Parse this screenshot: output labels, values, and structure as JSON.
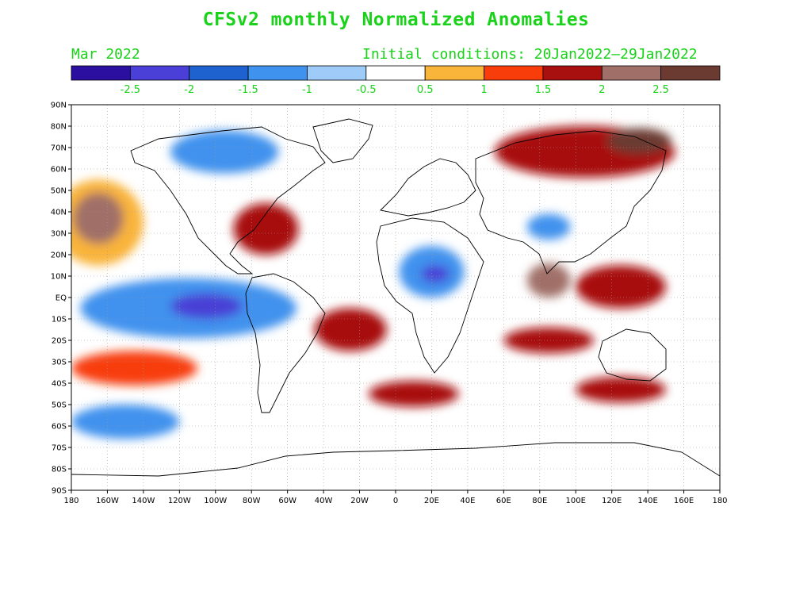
{
  "title": "CFSv2 monthly Normalized Anomalies",
  "month_label": "Mar 2022",
  "initial_conditions": "Initial conditions: 20Jan2022–29Jan2022",
  "colorbar": {
    "colors": [
      "#2a0fa0",
      "#4a3fd6",
      "#1e62d0",
      "#3f92ee",
      "#9ecbf7",
      "#ffffff",
      "#f9b43a",
      "#f83d0b",
      "#a80f0f",
      "#a07068",
      "#6b3a31"
    ],
    "labels": [
      "-2.5",
      "-2",
      "-1.5",
      "-1",
      "-0.5",
      "0.5",
      "1",
      "1.5",
      "2",
      "2.5"
    ]
  },
  "map": {
    "lat_labels": [
      "90N",
      "80N",
      "70N",
      "60N",
      "50N",
      "40N",
      "30N",
      "20N",
      "10N",
      "EQ",
      "10S",
      "20S",
      "30S",
      "40S",
      "50S",
      "60S",
      "70S",
      "80S",
      "90S"
    ],
    "lon_labels": [
      "180",
      "160W",
      "140W",
      "120W",
      "100W",
      "80W",
      "60W",
      "40W",
      "20W",
      "0",
      "20E",
      "40E",
      "60E",
      "80E",
      "100E",
      "120E",
      "140E",
      "160E",
      "180"
    ],
    "regions": [
      {
        "name": "north-pacific-warm",
        "level": 6,
        "lon": -165,
        "lat": 35,
        "rx": 25,
        "ry": 20
      },
      {
        "name": "north-pacific-core",
        "level": 9,
        "lon": -165,
        "lat": 37,
        "rx": 14,
        "ry": 12
      },
      {
        "name": "tropical-pacific-cold",
        "level": 3,
        "lon": -115,
        "lat": -5,
        "rx": 60,
        "ry": 14
      },
      {
        "name": "tropical-pacific-cold-core",
        "level": 1,
        "lon": -105,
        "lat": -4,
        "rx": 20,
        "ry": 6
      },
      {
        "name": "south-pacific-warm-band",
        "level": 7,
        "lon": -145,
        "lat": -33,
        "rx": 35,
        "ry": 8
      },
      {
        "name": "eastern-us-warm",
        "level": 8,
        "lon": -72,
        "lat": 32,
        "rx": 18,
        "ry": 12
      },
      {
        "name": "canada-cold",
        "level": 3,
        "lon": -95,
        "lat": 68,
        "rx": 30,
        "ry": 10
      },
      {
        "name": "africa-cold",
        "level": 3,
        "lon": 20,
        "lat": 12,
        "rx": 18,
        "ry": 12
      },
      {
        "name": "africa-cold-core",
        "level": 1,
        "lon": 22,
        "lat": 11,
        "rx": 8,
        "ry": 4
      },
      {
        "name": "siberia-warm",
        "level": 8,
        "lon": 105,
        "lat": 68,
        "rx": 50,
        "ry": 12
      },
      {
        "name": "siberia-core",
        "level": 10,
        "lon": 135,
        "lat": 73,
        "rx": 18,
        "ry": 6
      },
      {
        "name": "bay-of-bengal-warm",
        "level": 9,
        "lon": 85,
        "lat": 8,
        "rx": 12,
        "ry": 8
      },
      {
        "name": "indonesia-warm",
        "level": 8,
        "lon": 125,
        "lat": 5,
        "rx": 25,
        "ry": 10
      },
      {
        "name": "south-indian-ocean-warm",
        "level": 8,
        "lon": 85,
        "lat": -20,
        "rx": 25,
        "ry": 6
      },
      {
        "name": "southern-ocean-warm",
        "level": 8,
        "lon": 10,
        "lat": -45,
        "rx": 25,
        "ry": 6
      },
      {
        "name": "southern-ocean-south-of-australia",
        "level": 8,
        "lon": 125,
        "lat": -43,
        "rx": 25,
        "ry": 6
      },
      {
        "name": "south-pacific-cold",
        "level": 3,
        "lon": -150,
        "lat": -58,
        "rx": 30,
        "ry": 8
      },
      {
        "name": "south-atlantic-warm",
        "level": 8,
        "lon": -25,
        "lat": -15,
        "rx": 20,
        "ry": 10
      },
      {
        "name": "tibet-cold",
        "level": 3,
        "lon": 85,
        "lat": 33,
        "rx": 12,
        "ry": 6
      }
    ]
  }
}
